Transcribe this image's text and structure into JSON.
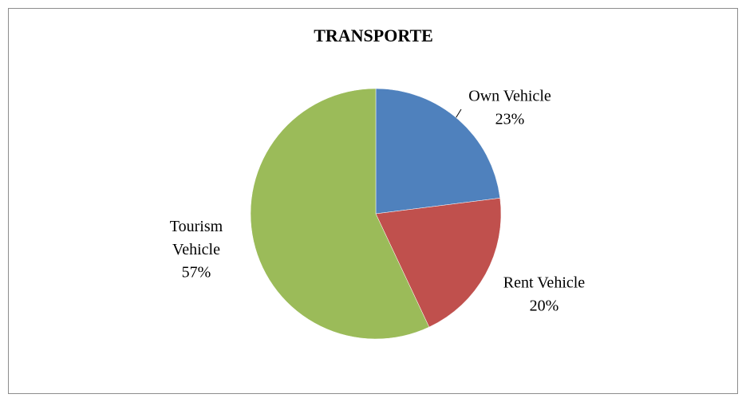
{
  "chart_data": {
    "type": "pie",
    "title": "TRANSPORTE",
    "categories": [
      "Own Vehicle",
      "Rent Vehicle",
      "Tourism Vehicle"
    ],
    "values": [
      23,
      20,
      57
    ],
    "value_labels": [
      "23%",
      "20%",
      "57%"
    ],
    "colors": [
      "#4f81bd",
      "#c0504d",
      "#9bbb59"
    ]
  }
}
